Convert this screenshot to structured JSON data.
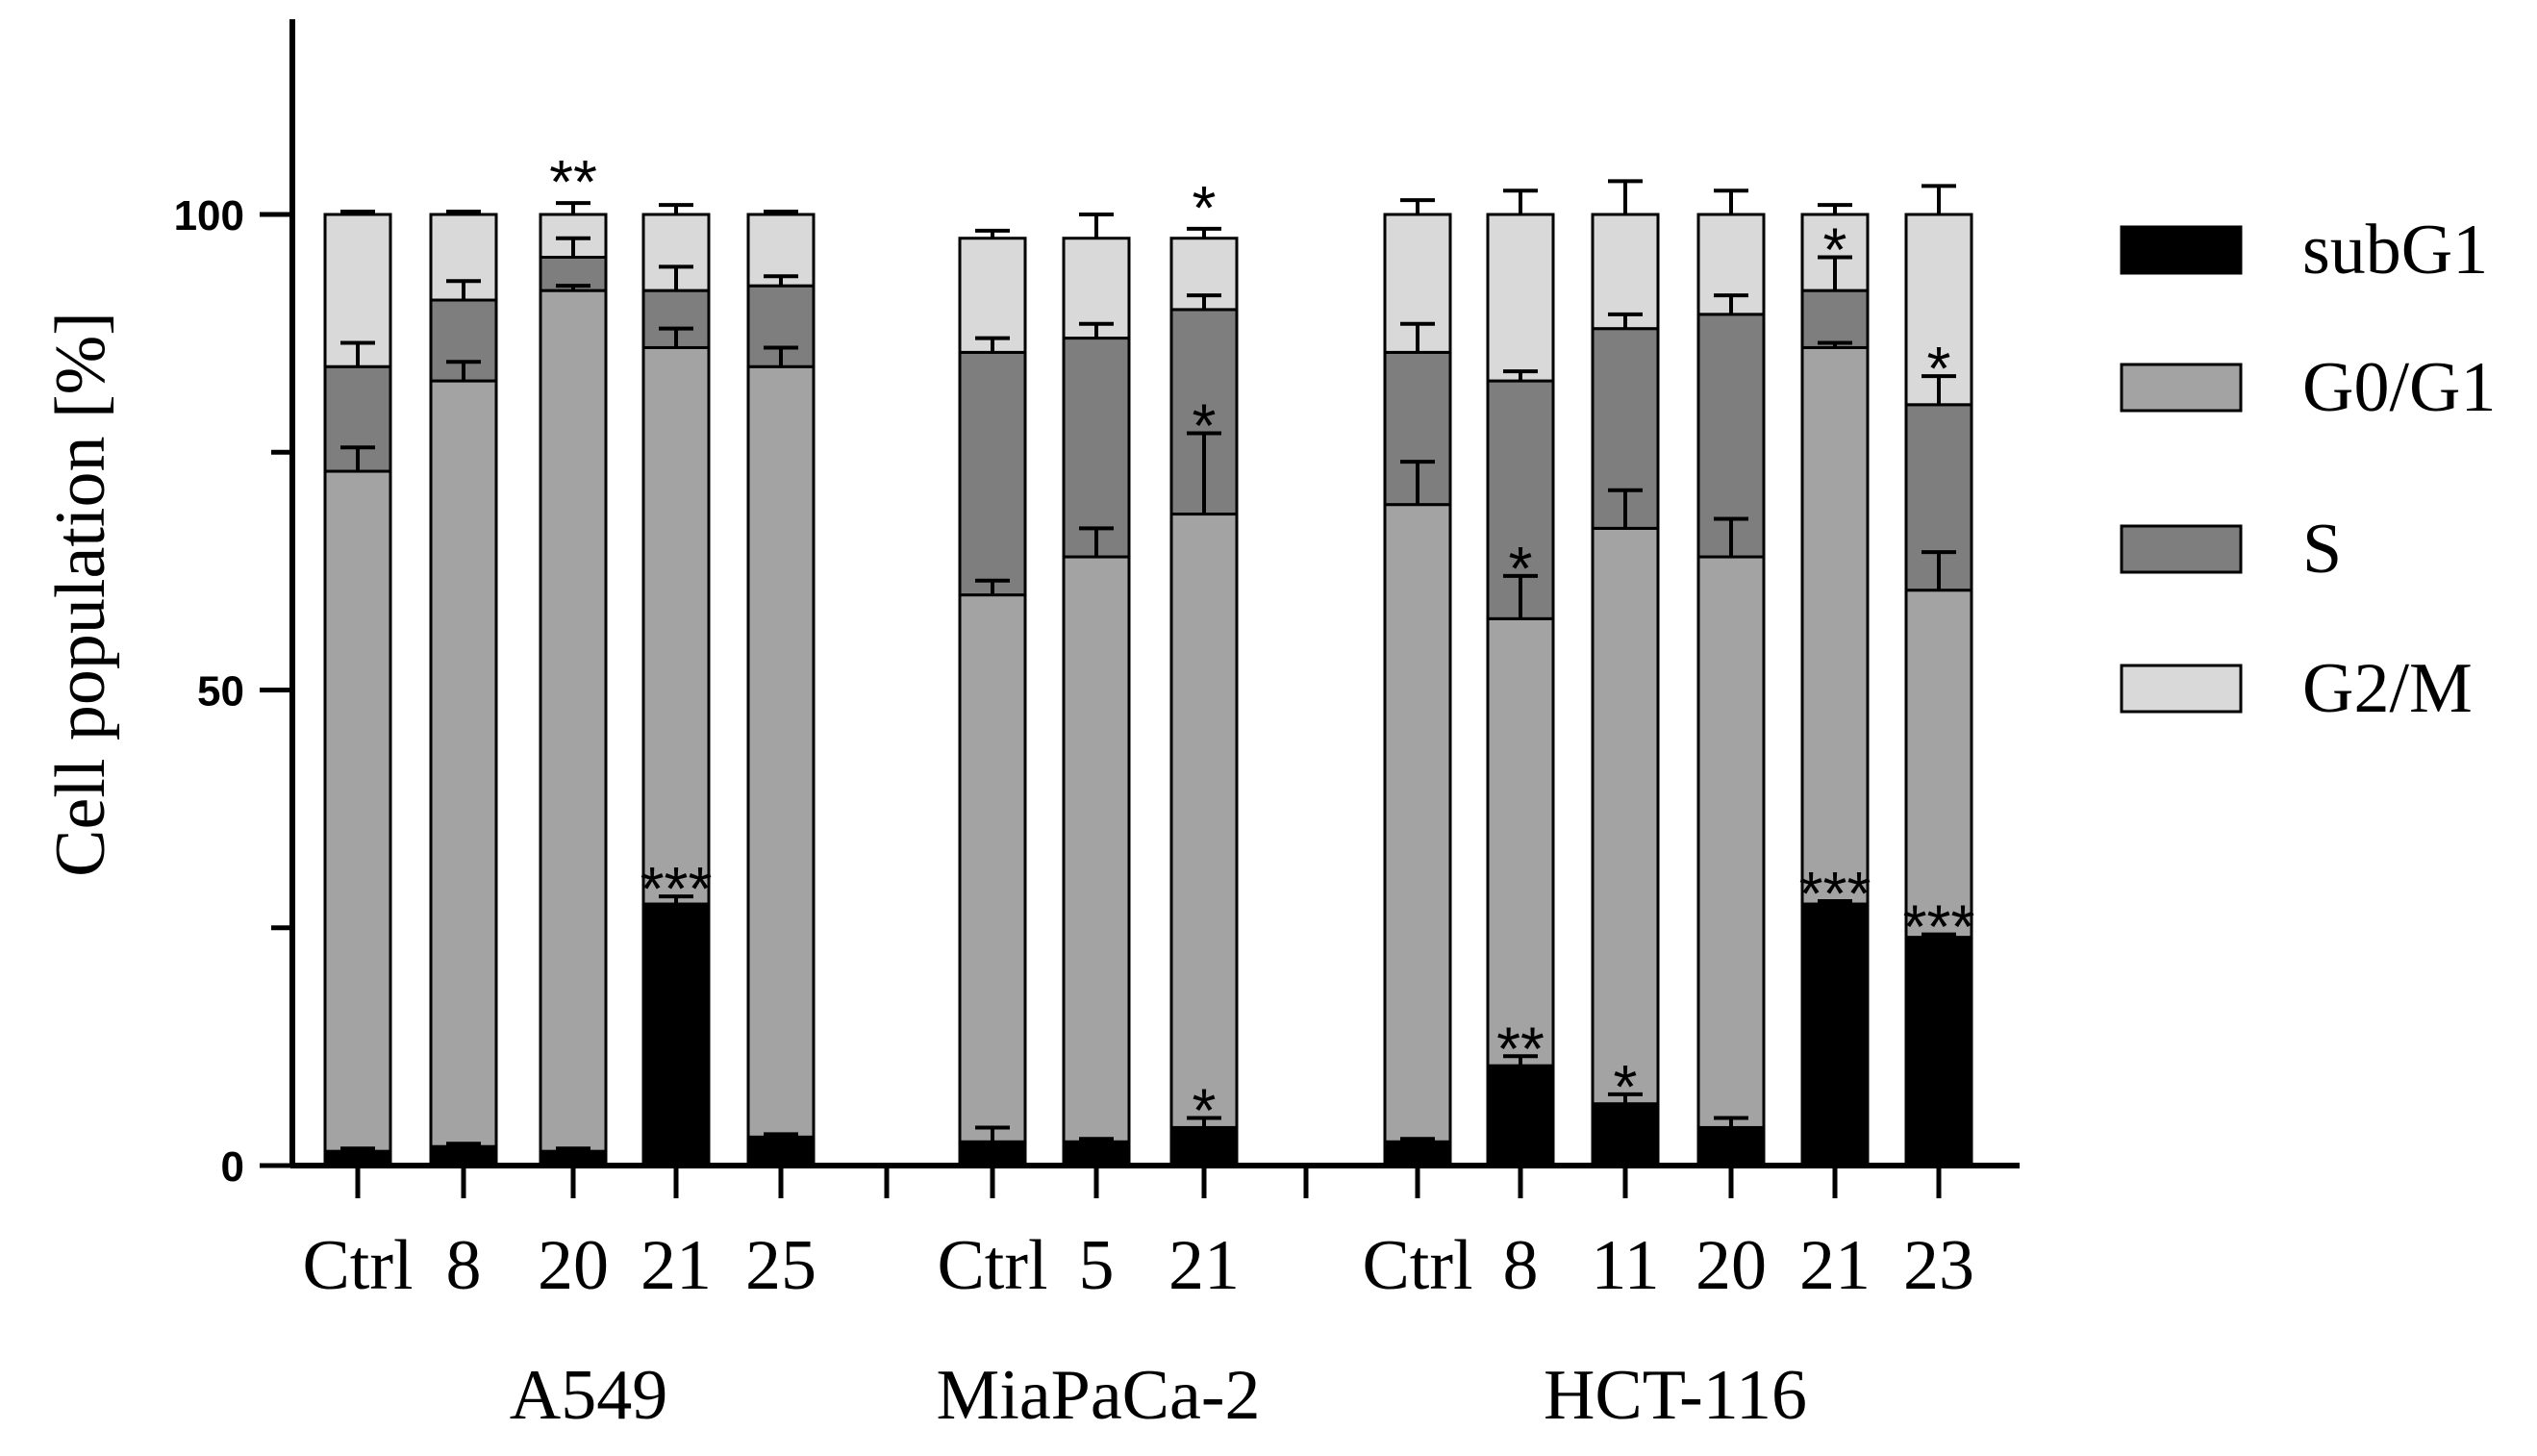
{
  "chart_data": {
    "type": "bar",
    "stacked": true,
    "ylabel": "Cell population [%]",
    "xlabel": "",
    "ylim": [
      0,
      120
    ],
    "yticks": [
      0,
      50,
      100
    ],
    "grid": false,
    "legend_position": "right",
    "legend": [
      {
        "name": "subG1",
        "color": "#000000"
      },
      {
        "name": "G0/G1",
        "color": "#a3a3a3"
      },
      {
        "name": "S",
        "color": "#7e7e7e"
      },
      {
        "name": "G2/M",
        "color": "#d9d9d9"
      }
    ],
    "groups": [
      {
        "name": "A549",
        "bars": [
          {
            "label": "Ctrl",
            "subG1": 1.5,
            "G0G1": 71.5,
            "S": 11,
            "G2M": 16,
            "err": {
              "subG1": 0.3,
              "G0G1": 2.5,
              "S": 2.5,
              "G2M": 0.3
            },
            "sig": {}
          },
          {
            "label": "8",
            "subG1": 2,
            "G0G1": 80.5,
            "S": 8.5,
            "G2M": 9,
            "err": {
              "subG1": 0.3,
              "G0G1": 2,
              "S": 2,
              "G2M": 0.3
            },
            "sig": {}
          },
          {
            "label": "20",
            "subG1": 1.5,
            "G0G1": 90.5,
            "S": 3.5,
            "G2M": 4.5,
            "err": {
              "subG1": 0.3,
              "G0G1": 0.5,
              "S": 2,
              "G2M": 1.2
            },
            "sig": {
              "top": "**"
            }
          },
          {
            "label": "21",
            "subG1": 27.5,
            "G0G1": 58.5,
            "S": 6,
            "G2M": 8,
            "err": {
              "subG1": 0.8,
              "G0G1": 2,
              "S": 2.5,
              "G2M": 1
            },
            "sig": {
              "subG1": "***"
            }
          },
          {
            "label": "25",
            "subG1": 3,
            "G0G1": 81,
            "S": 8.5,
            "G2M": 7.5,
            "err": {
              "subG1": 0.3,
              "G0G1": 2,
              "S": 1,
              "G2M": 0.3
            },
            "sig": {}
          }
        ]
      },
      {
        "name": "MiaPaCa-2",
        "bars": [
          {
            "label": "Ctrl",
            "subG1": 2.5,
            "G0G1": 57.5,
            "S": 25.5,
            "G2M": 12,
            "err": {
              "subG1": 1.5,
              "G0G1": 1.5,
              "S": 1.5,
              "G2M": 0.8
            },
            "sig": {}
          },
          {
            "label": "5",
            "subG1": 2.5,
            "G0G1": 61.5,
            "S": 23,
            "G2M": 10.5,
            "err": {
              "subG1": 0.3,
              "G0G1": 3,
              "S": 1.5,
              "G2M": 2.5
            },
            "sig": {}
          },
          {
            "label": "21",
            "subG1": 4,
            "G0G1": 64.5,
            "S": 21.5,
            "G2M": 7.5,
            "err": {
              "subG1": 1,
              "G0G1": 8.5,
              "S": 1.5,
              "G2M": 1
            },
            "sig": {
              "subG1": "*",
              "G0G1": "*",
              "top": "*"
            }
          }
        ]
      },
      {
        "name": "HCT-116",
        "bars": [
          {
            "label": "Ctrl",
            "subG1": 2.5,
            "G0G1": 67,
            "S": 16,
            "G2M": 14.5,
            "err": {
              "subG1": 0.3,
              "G0G1": 4.5,
              "S": 3,
              "G2M": 1.5
            },
            "sig": {}
          },
          {
            "label": "8",
            "subG1": 10.5,
            "G0G1": 47,
            "S": 25,
            "G2M": 17.5,
            "err": {
              "subG1": 1,
              "G0G1": 4.5,
              "S": 1,
              "G2M": 2.5
            },
            "sig": {
              "subG1": "**",
              "G0G1": "*"
            }
          },
          {
            "label": "11",
            "subG1": 6.5,
            "G0G1": 60.5,
            "S": 21,
            "G2M": 12,
            "err": {
              "subG1": 1,
              "G0G1": 4,
              "S": 1.5,
              "G2M": 3.5
            },
            "sig": {
              "subG1": "*"
            }
          },
          {
            "label": "20",
            "subG1": 4,
            "G0G1": 60,
            "S": 25.5,
            "G2M": 10.5,
            "err": {
              "subG1": 1,
              "G0G1": 4,
              "S": 2,
              "G2M": 2.5
            },
            "sig": {}
          },
          {
            "label": "21",
            "subG1": 27.5,
            "G0G1": 58.5,
            "S": 6,
            "G2M": 8,
            "err": {
              "subG1": 0.3,
              "G0G1": 0.5,
              "S": 3.5,
              "G2M": 1
            },
            "sig": {
              "subG1": "***",
              "S": "*"
            }
          },
          {
            "label": "23",
            "subG1": 24,
            "G0G1": 36.5,
            "S": 19.5,
            "G2M": 20,
            "err": {
              "subG1": 0.3,
              "G0G1": 4,
              "S": 3,
              "G2M": 3
            },
            "sig": {
              "subG1": "***",
              "S": "*"
            }
          }
        ]
      }
    ]
  }
}
